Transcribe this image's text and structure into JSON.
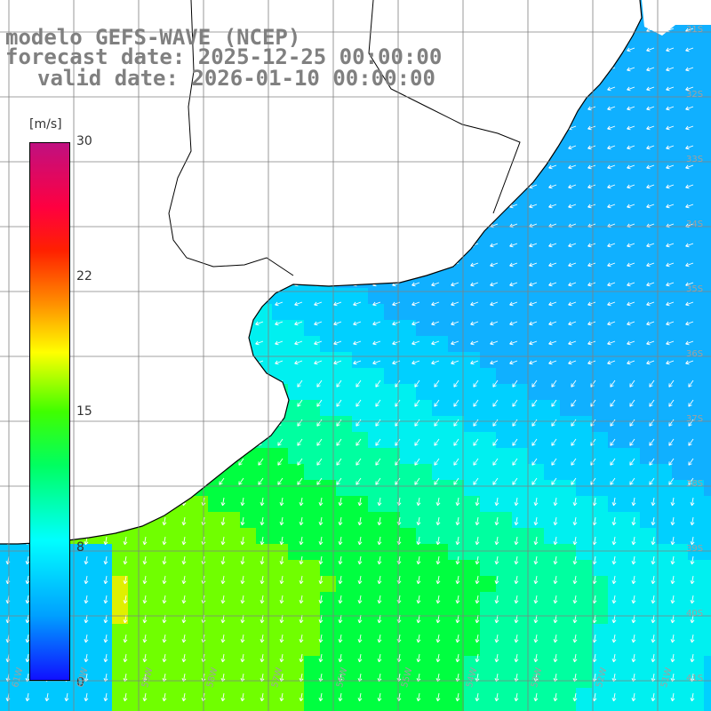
{
  "title": {
    "line1": "modelo GEFS-WAVE (NCEP)",
    "line2": "forecast date: 2025-12-25 00:00:00",
    "line3": "valid date: 2026-01-10 00:00:00"
  },
  "legend": {
    "unit": "[m/s]",
    "ticks": [
      "30",
      "22",
      "15",
      "8",
      "0"
    ]
  },
  "grid": {
    "lat_labels": [
      "31S",
      "32S",
      "33S",
      "34S",
      "35S",
      "36S",
      "37S",
      "38S",
      "39S",
      "40S",
      "41S"
    ],
    "lon_labels": [
      "61W",
      "60W",
      "59W",
      "58W",
      "57W",
      "56W",
      "55W",
      "54W",
      "53W",
      "52W",
      "51W"
    ]
  },
  "colors": {
    "land": "#ffffff",
    "coast": "#000000",
    "grid": "#808080",
    "arrows": "#ffffff"
  }
}
